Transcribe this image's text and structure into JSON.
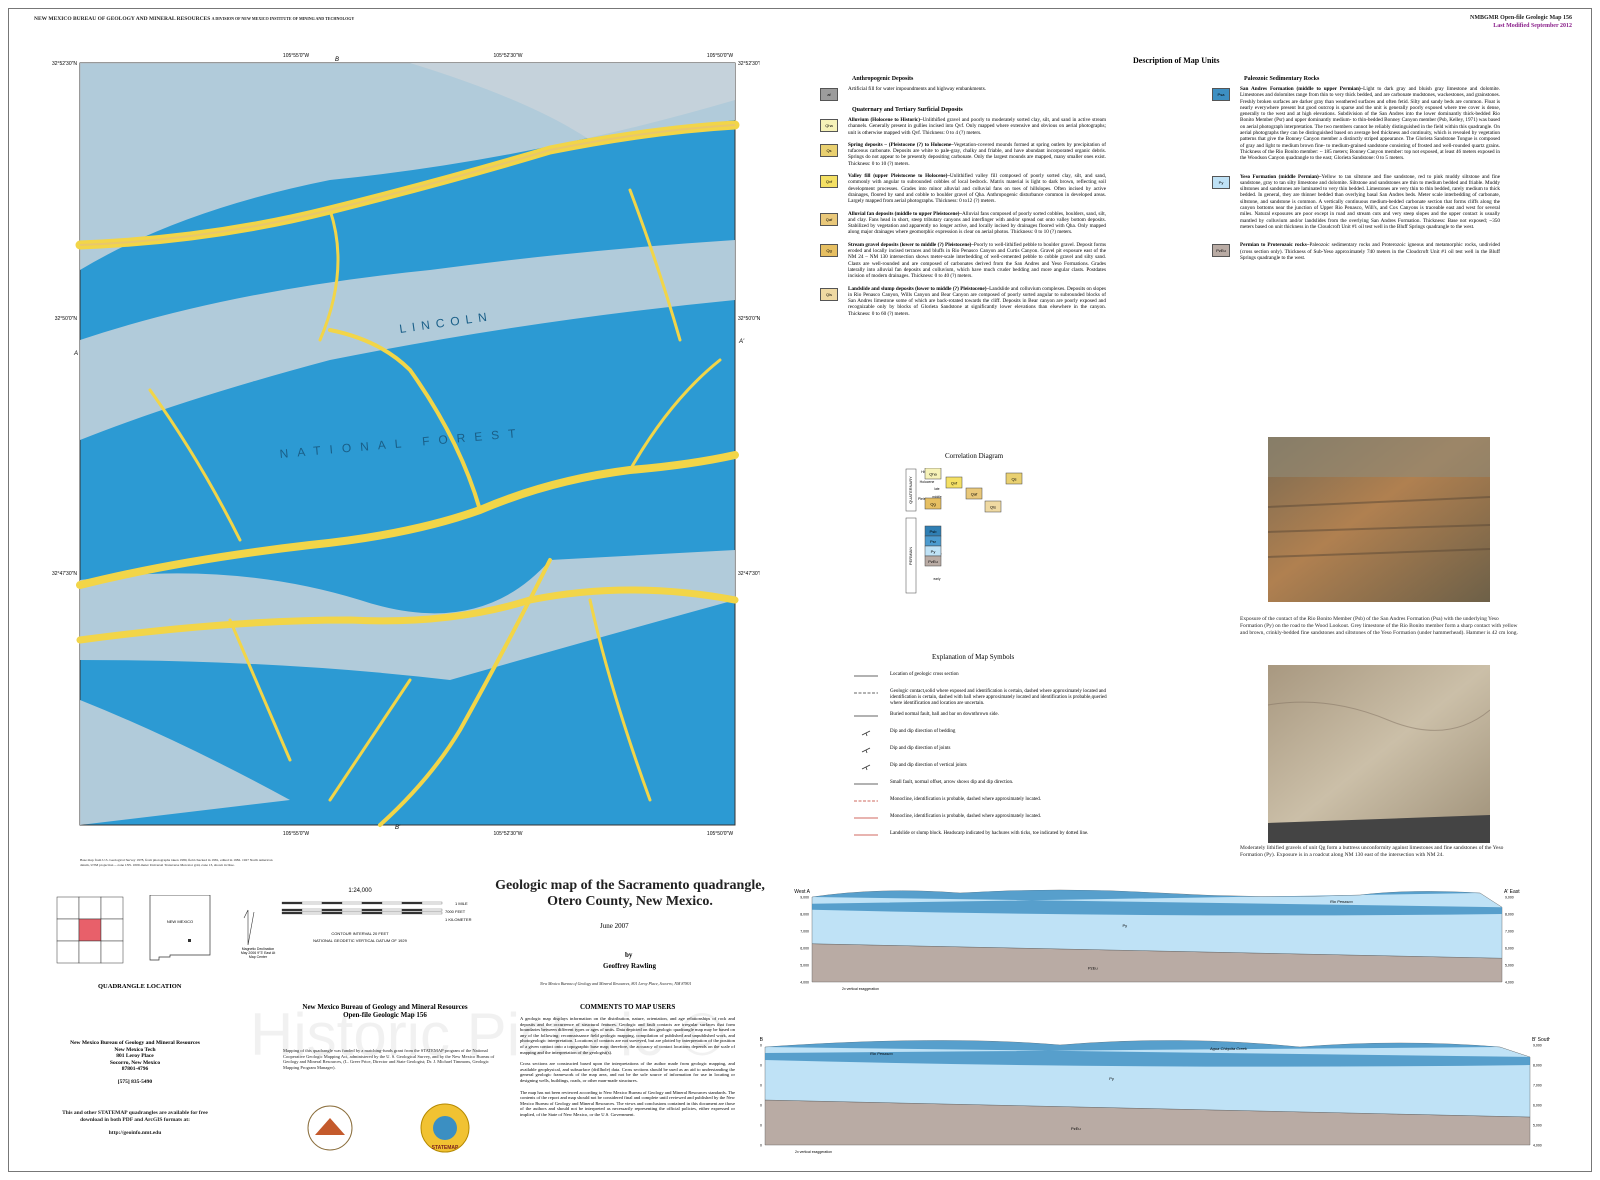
{
  "header": {
    "agency": "NEW MEXICO BUREAU OF GEOLOGY AND MINERAL RESOURCES",
    "division": "A DIVISION OF NEW MEXICO INSTITUTE OF MINING AND TECHNOLOGY",
    "map_number": "NMBGMR Open-file Geologic Map 156",
    "modified": "Last Modified September 2012"
  },
  "map": {
    "top_longitudes": [
      "105°55'0\"W",
      "105°52'30\"W",
      "105°50'0\"W"
    ],
    "latitudes": [
      "32°52'30\"N",
      "32°50'0\"N",
      "32°47'30\"N"
    ],
    "section_letters": [
      "B",
      "A",
      "A'",
      "B'"
    ],
    "place_labels": [
      "LINCOLN",
      "NATIONAL FOREST"
    ],
    "base_note": "Base map from U.S. Geological Survey 1978, from photographs taken 1980, field checked in 1981, edited in 1982. 1927 North American datum, UTM projection -- zone 13N. 1000-meter Universal Transverse Mercator grid, zone 13, shown in blue."
  },
  "title": {
    "main": "Geologic map of the Sacramento quadrangle,",
    "sub": "Otero County, New Mexico.",
    "date": "June 2007",
    "by": "by",
    "author": "Geoffrey Rawling",
    "address": "New Mexico Bureau of Geology and Mineral Resources, 801 Leroy Place, Socorro, NM 87801"
  },
  "units": {
    "title": "Description of Map Units",
    "columns": [
      [
        {
          "heading": "Anthropogenic Deposits",
          "items": [
            {
              "symbol": "af",
              "color": "#9c9c9c",
              "name": "",
              "description": "Artificial fill for water impoundments and highway embankments."
            }
          ]
        },
        {
          "heading": "Quaternary and Tertiary Surficial Deposits",
          "items": [
            {
              "symbol": "Qha",
              "color": "#f6f2b8",
              "name": "Alluvium (Holocene to Historic)–",
              "description": "Unlithified gravel and poorly to moderately sorted clay, silt, and sand in active stream channels. Generally present in gullies incised into Qvf. Only mapped where extensive and obvious on aerial photographs; unit is otherwise mapped with Qvf. Thickness: 0 to 4 (?) meters."
            },
            {
              "symbol": "Qs",
              "color": "#e9d070",
              "name": "Spring deposits – (Pleistocene (?) to Holocene–",
              "description": "Vegetation-covered mounds formed at spring outlets by precipitation of tufaceous carbonate. Deposits are white to pale-gray, chalky and friable, and have abundant incorporated organic debris. Springs do not appear to be presently depositing carbonate. Only the largest mounds are mapped, many smaller ones exist. Thickness: 0 to 10 (?) meters."
            },
            {
              "symbol": "Qvf",
              "color": "#f4e064",
              "name": "Valley fill (upper Pleistocene to Holocene)–",
              "description": "Unlithified valley fill composed of poorly sorted clay, silt, and sand, commonly with angular to subrounded cobbles of local bedrock. Matrix material is light to dark brown, reflecting soil development processes. Grades into minor alluvial and colluvial fans on toes of hillslopes. Often incised by active drainages, floored by sand and cobble to boulder gravel of Qha. Anthropogenic disturbance common in developed areas. Largely mapped from aerial photographs. Thickness: 0 to12 (?) meters."
            },
            {
              "symbol": "Qaf",
              "color": "#e9c87a",
              "name": "Alluvial fan deposits (middle to upper Pleistocene)–",
              "description": "Alluvial fans composed of poorly sorted cobbles, boulders, sand, silt, and clay. Fans head in short, steep tributary canyons and interfinger with and/or spread out onto valley bottom deposits. Stabilized by vegetation and apparently no longer active, and locally incised by drainages floored with Qha. Only mapped along major drainages where geomorphic expression is clear on aerial photos. Thickness: 0 to 10 (?) meters."
            },
            {
              "symbol": "Qg",
              "color": "#e6bf62",
              "name": "Stream gravel deposits (lower to middle (?) Pleistocene)–",
              "description": "Poorly to well-lithified pebble to boulder gravel. Deposit forms eroded and locally incised terraces and bluffs in Rio Penasco Canyon and Curtis Canyon. Gravel pit exposure east of the NM 24 – NM 130 intersection shows meter-scale interbedding of well-cemented pebble to cobble gravel and silty sand. Clasts are well-rounded and are composed of carbonates derived from the San Andres and Yeso Formations. Grades laterally into alluvial fan deposits and colluvium, which have much cruder bedding and more angular clasts. Postdates incision of modern drainages. Thickness: 0 to 40 (?) meters."
            },
            {
              "symbol": "Qls",
              "color": "#efd9a2",
              "name": "Landslide and slump deposits (lower to middle (?) Pleistocene)–",
              "description": "Landslide and colluvium complexes. Deposits on slopes in Rio Penasco Canyon, Wills Canyon and Bear Canyon are composed of poorly sorted angular to subrounded blocks of San Andres limestone some of which are back-rotated towards the cliff. Deposits in Bear canyon are poorly exposed and recognizable only by blocks of Glorieta Sandstone at significantly lower elevations than elsewhere in the canyon. Thickness: 0 to 60 (?) meters."
            }
          ]
        }
      ],
      [
        {
          "heading": "Paleozoic Sedimentary Rocks",
          "items": [
            {
              "symbol": "Psa",
              "color": "#3d8fc2",
              "name": "San Andres Formation (middle to upper Permian)–",
              "description": "Light to dark gray and bluish gray limestone and dolomite. Limestones and dolomites range from thin to very thick bedded, and are carbonate mudstones, wackestones, and grainstones. Freshly broken surfaces are darker gray than weathered surfaces and often fetid. Silty and sandy beds are common. Float is nearly everywhere present but good outcrop is sparse and the unit is generally poorly exposed where tree cover is dense, generally to the west and at high elevations. Subdivision of the San Andres into the lower dominantly thick-bedded Rio Bonito Member (Psr) and upper dominantly medium- to thin-bedded Bonney Canyon member (Psb, Kelley, 1971) was based on aerial photograph interpretation. The two members cannot be reliably distinguished in the field within this quadrangle. On aerial photographs they can be distinguished based on average bed thickness and continuity, which is revealed by vegetation patterns that give the Bonney Canyon member a distinctly striped appearance. The Glorieta Sandstone Tongue is composed of gray and light to medium brown fine- to medium-grained sandstone consisting of frosted and well-rounded quartz grains. Thickness of the Rio Bonito member: ~ 185 meters; Bonney Canyon member: top not exposed, at least 46 meters exposed in the Woodson Canyon quadrangle to the east; Glorieta Sandstone: 0 to 5 meters."
            },
            {
              "symbol": "Py",
              "color": "#bfe2f6",
              "name": "Yeso Formation (middle Permian)–",
              "description": "Yellow to tan siltstone and fine sandstone, red to pink muddy siltstone and fine sandstone, gray to tan silty limestone and dolomite. Siltstone and sandstones are thin to medium bedded and friable. Muddy siltstones and sandstones are laminated to very thin bedded. Limestones are very thin to thin bedded, rarely medium to thick bedded. In general, they are thinner bedded than overlying basal San Andres beds. Meter scale interbedding of carbonate, siltstone, and sandstone is common. A vertically continuous medium-bedded carbonate section that forms cliffs along the canyon bottoms near the junction of Upper Rio Penasco, Will's, and Cox Canyons is traceable east and west for several miles. Natural exposures are poor except in road and stream cuts and very steep slopes and the upper contact is usually mantled by colluvium and/or landslides from the overlying San Andres Formation. Thickness: Base not exposed; ~350 meters based on unit thickness in the Cloudcroft Unit #1 oil test well in the Bluff Springs quadrangle to the west."
            },
            {
              "symbol": "PzEu",
              "color": "#b9aba4",
              "name": "Permian to Proterozoic rocks–",
              "description": "Paleozoic sedimentary rocks and Proterozoic igneous and metamorphic rocks, undivided (cross section only). Thickness of Sub-Yeso approximately 740 meters in the Cloudcroft Unit #1 oil test well in the Bluff Springs quadrangle to the west."
            }
          ]
        }
      ]
    ]
  },
  "correlation": {
    "title": "Correlation Diagram",
    "systems": [
      "QUATERNARY",
      "PERMIAN"
    ],
    "epochs": [
      "Historic",
      "Holocene",
      "Pleistocene"
    ],
    "ages": [
      "late",
      "middle",
      "early"
    ],
    "quaternary_units": [
      "Qha",
      "Qvf",
      "Qs",
      "Qaf",
      "Qg",
      "Qls"
    ],
    "permian_units": [
      "Psb",
      "Psr",
      "Py",
      "PzEu"
    ]
  },
  "symbols": {
    "title": "Explanation of Map Symbols",
    "items": [
      "Location of geologic cross section",
      "Geologic contact,solid where exposed and identification is certain, dashed where approximately located and identification is certain, dashed with ball where approximately located and identification is probable,queried where identification and location are uncertain.",
      "Buried normal fault, ball and bar on downthrown side.",
      "Dip and dip direction of bedding",
      "Dip and dip direction of joints",
      "Dip and dip direction of vertical joints",
      "Small fault, normal offset, arrow shows dip and dip direction.",
      "Monocline, identification is probable, dashed where approximately located.",
      "Monocline, identification is probable, dashed where approximately located.",
      "Landslide or slump block. Headscarp indicated by hachures with ticks, toe indicated by dotted line."
    ]
  },
  "photos": [
    "Exposure of the contact of the Rio Bonito Member (Psb) of the San Andres Formation (Psa) with the underlying Yeso Formation (Py) on the road to the Wood Lookout. Grey limestone of the Rio Bonito member form a sharp contact with yellow and brown, crinkly-bedded fine sandstones and siltstones of the Yeso Formation (under hammerhead). Hammer is 42 cm long.",
    "Moderately lithified gravels of unit Qg form a buttress unconformity against limestones and fine sandstones of the Yeso Formation (Py). Exposure is in a roadcut along NM 130 east of the intersection with NM 24."
  ],
  "scale": {
    "ratio": "1:24,000",
    "mile": "1 MILE",
    "feet": "7000 FEET",
    "km": "1 KILOMETER",
    "contour": "CONTOUR INTERVAL 20 FEET",
    "datum": "NATIONAL GEODETIC VERTICAL DATUM OF 1929",
    "declination": "Magnetic Declination May 2006 9°3' East At Map Center"
  },
  "location": {
    "title": "QUADRANGLE LOCATION",
    "state": "NEW MEXICO"
  },
  "publisher": {
    "title": "New Mexico Bureau of Geology and Mineral Resources",
    "subtitle": "Open-file Geologic Map 156",
    "funding": "Mapping of this quadrangle was funded by a matching-funds grant from the STATEMAP program of the National Cooperative Geologic Mapping Act, administered by the U. S. Geological Survey, and by the New Mexico Bureau of Geology and Mineral Resources, (L. Greer Price, Director and State Geologist; Dr. J. Michael Timmons, Geologic Mapping Program Manager).",
    "address": [
      "New Mexico Bureau of Geology and Mineral Resources",
      "New Mexico Tech",
      "801 Leroy Place",
      "Socorro, New Mexico",
      "87801-4796",
      "[575] 835-5490"
    ],
    "download": "This and other STATEMAP quadrangles are available for free download in both PDF and ArcGIS formats at:",
    "url": "http://geoinfo.nmt.edu",
    "logo": "STATEMAP"
  },
  "comments": {
    "title": "COMMENTS TO MAP USERS",
    "paragraphs": [
      "A geologic map displays information on the distribution, nature, orientation, and age relationships of rock and deposits and the occurrence of structural features. Geologic and fault contacts are irregular surfaces that form boundaries between different types or ages of units. Data depicted on this geologic quadrangle map may be based on any of the following: reconnaissance field geologic mapping, compilation of published and unpublished work, and photogeologic interpretation. Locations of contacts are not surveyed, but are plotted by interpretation of the position of a given contact onto a topographic base map; therefore, the accuracy of contact locations depends on the scale of mapping and the interpretation of the geologist(s).",
      "Cross sections are constructed based upon the interpretations of the author made from geologic mapping, and available geophysical, and subsurface (drillhole) data. Cross sections should be used as an aid to understanding the general geologic framework of the map area, and not be the sole source of information for use in locating or designing wells, buildings, roads, or other man-made structures.",
      "The map has not been reviewed according to New Mexico Bureau of Geology and Mineral Resources standards. The contents of the report and map should not be considered final and complete until reviewed and published by the New Mexico Bureau of Geology and Mineral Resources. The views and conclusions contained in this document are those of the authors and should not be interpreted as necessarily representing the official policies, either expressed or implied, of the State of New Mexico, or the U.S. Government."
    ]
  },
  "sections": {
    "a_left": "West A",
    "a_right": "A' East",
    "b_left": "North B",
    "b_right": "B' South",
    "labels": [
      "Rio Penasco",
      "Py",
      "PzEu",
      "Agua Chiquita Creek"
    ],
    "elevations": [
      "9,000",
      "8,000",
      "7,000",
      "6,000",
      "5,000",
      "4,000"
    ],
    "exaggeration": "2x vertical exaggeration"
  },
  "watermark": "Historic Pictoric ©"
}
